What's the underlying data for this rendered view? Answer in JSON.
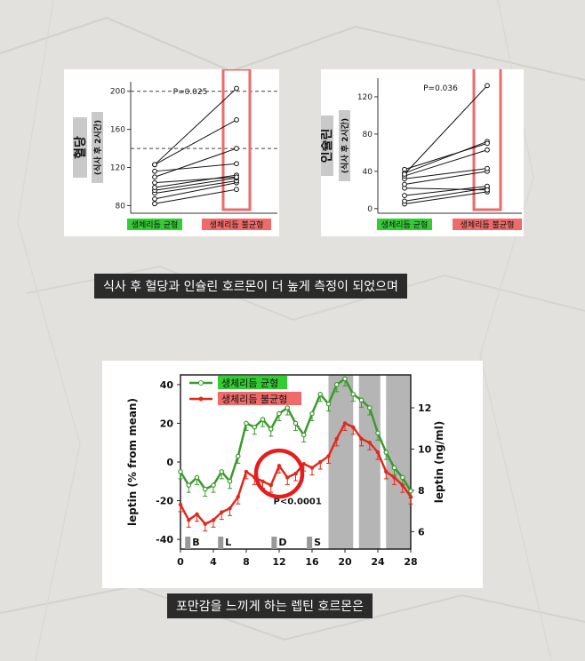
{
  "captions": {
    "top": "식사 후 혈당과 인슐린 호르몬이 더 높게 측정이 되었으며",
    "bottom": "포만감을 느끼게 하는 렙틴 호르몬은"
  },
  "legend": {
    "balanced": "생체리듬 균형",
    "imbalanced": "생체리듬 불균형"
  },
  "colors": {
    "balanced": "#3a9a2c",
    "imbalanced": "#e02a1e",
    "balanced_label_bg": "#33cc33",
    "imbalanced_label_bg": "#f06a6a",
    "highlight": "#ef6a6a"
  },
  "chart_data": [
    {
      "type": "scatter",
      "name": "glucose",
      "ylabel_main": "혈당",
      "ylabel_sub": "(식사 후 2시간)",
      "pvalue": "P=0.025",
      "categories": [
        "생체리듬 균형",
        "생체리듬 불균형"
      ],
      "yticks": [
        80,
        120,
        160,
        200
      ],
      "ylim": [
        72,
        210
      ],
      "reference_lines": [
        200,
        140
      ],
      "pairs": [
        [
          82,
          97
        ],
        [
          87,
          104
        ],
        [
          93,
          106
        ],
        [
          96,
          109
        ],
        [
          99,
          112
        ],
        [
          104,
          110
        ],
        [
          110,
          140
        ],
        [
          116,
          124
        ],
        [
          123,
          170
        ],
        [
          123,
          203
        ]
      ]
    },
    {
      "type": "scatter",
      "name": "insulin",
      "ylabel_main": "인슐린",
      "ylabel_sub": "(식사 후 2시간)",
      "pvalue": "P=0.036",
      "categories": [
        "생체리듬 균형",
        "생체리듬 불균형"
      ],
      "yticks": [
        0,
        40,
        80,
        120
      ],
      "ylim": [
        -5,
        140
      ],
      "reference_lines": [],
      "pairs": [
        [
          5,
          18
        ],
        [
          8,
          22
        ],
        [
          14,
          24
        ],
        [
          22,
          20
        ],
        [
          26,
          40
        ],
        [
          32,
          43
        ],
        [
          35,
          63
        ],
        [
          38,
          72
        ],
        [
          42,
          70
        ],
        [
          37,
          132
        ]
      ]
    },
    {
      "type": "line",
      "name": "leptin",
      "ylabel_left": "leptin (% from mean)",
      "ylabel_right": "leptin (ng/ml)",
      "annotation": "P<0.0001",
      "xticks": [
        0,
        4,
        8,
        12,
        16,
        20,
        24,
        28
      ],
      "yticks_left": [
        -40,
        -20,
        0,
        20,
        40
      ],
      "yticks_right": [
        6,
        8,
        10,
        12
      ],
      "xlim": [
        0,
        28
      ],
      "ylim": [
        -45,
        45
      ],
      "meal_labels": [
        {
          "label": "B",
          "x": 1
        },
        {
          "label": "L",
          "x": 5
        },
        {
          "label": "D",
          "x": 11.5
        },
        {
          "label": "S",
          "x": 15.8
        }
      ],
      "shaded_periods": [
        [
          18,
          21
        ],
        [
          21.7,
          24.3
        ],
        [
          25,
          28
        ]
      ],
      "series": [
        {
          "name": "생체리듬 균형",
          "x": [
            0,
            1,
            2,
            3,
            4,
            5,
            6,
            7,
            8,
            9,
            10,
            11,
            12,
            13,
            14,
            15,
            16,
            17,
            18,
            19,
            20,
            21,
            22,
            23,
            24,
            25,
            26,
            27,
            28
          ],
          "values": [
            -5,
            -12,
            -8,
            -14,
            -12,
            -5,
            -10,
            3,
            20,
            18,
            22,
            17,
            25,
            28,
            20,
            14,
            25,
            35,
            30,
            40,
            43,
            35,
            32,
            28,
            15,
            5,
            -3,
            -8,
            -15
          ]
        },
        {
          "name": "생체리듬 불균형",
          "x": [
            0,
            1,
            2,
            3,
            4,
            5,
            6,
            7,
            8,
            9,
            10,
            11,
            12,
            13,
            14,
            15,
            16,
            17,
            18,
            19,
            20,
            21,
            22,
            23,
            24,
            25,
            26,
            27,
            28
          ],
          "values": [
            -22,
            -30,
            -27,
            -32,
            -30,
            -26,
            -24,
            -18,
            -5,
            -8,
            -10,
            -12,
            -2,
            -8,
            -6,
            -1,
            -3,
            0,
            3,
            12,
            20,
            18,
            12,
            10,
            5,
            -5,
            -8,
            -12,
            -18
          ]
        }
      ]
    }
  ]
}
